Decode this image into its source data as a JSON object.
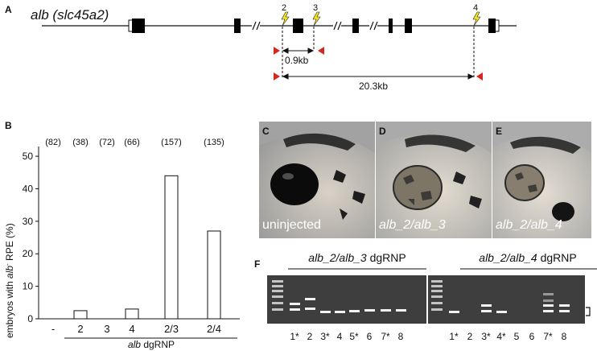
{
  "panel_a": {
    "letter": "A",
    "gene_italic": "alb",
    "gene_rest": " (slc45a2)",
    "site_labels": [
      "2",
      "3",
      "4"
    ],
    "dist_small": "0.9kb",
    "dist_large": "20.3kb"
  },
  "panel_b": {
    "letter": "B",
    "ylabel_pre": "embryos with ",
    "ylabel_italic": "alb",
    "ylabel_sup": "-",
    "ylabel_post": " RPE (%)",
    "group_pre": "",
    "group_italic": "alb",
    "group_post": " dgRNP",
    "chart_data": {
      "type": "bar",
      "categories": [
        "-",
        "2",
        "3",
        "4",
        "2/3",
        "2/4"
      ],
      "values": [
        0,
        2.5,
        0,
        3,
        44,
        27
      ],
      "counts": [
        "(82)",
        "(38)",
        "(72)",
        "(66)",
        "(157)",
        "(135)"
      ],
      "yticks": [
        "0",
        "10",
        "20",
        "30",
        "40",
        "50"
      ],
      "ylim": [
        0,
        53
      ]
    }
  },
  "panel_c": {
    "letter": "C",
    "caption": "uninjected"
  },
  "panel_d": {
    "letter": "D",
    "caption": "alb_2/alb_3"
  },
  "panel_e": {
    "letter": "E",
    "caption": "alb_2/alb_4"
  },
  "panel_f": {
    "letter": "F",
    "left_title_italic": "alb_2/alb_3",
    "left_title_rest": " dgRNP",
    "right_title_italic": "alb_2/alb_4",
    "right_title_rest": " dgRNP",
    "left_lanes": [
      "1*",
      "2",
      "3*",
      "4",
      "5*",
      "6",
      "7*",
      "8"
    ],
    "right_lanes": [
      "1*",
      "2",
      "3*",
      "4*",
      "5",
      "6",
      "7*",
      "8"
    ]
  }
}
